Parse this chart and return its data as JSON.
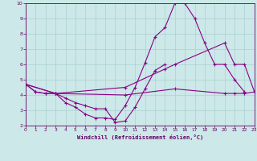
{
  "xlabel": "Windchill (Refroidissement éolien,°C)",
  "xlim": [
    0,
    23
  ],
  "ylim": [
    2,
    10
  ],
  "xticks": [
    0,
    1,
    2,
    3,
    4,
    5,
    6,
    7,
    8,
    9,
    10,
    11,
    12,
    13,
    14,
    15,
    16,
    17,
    18,
    19,
    20,
    21,
    22,
    23
  ],
  "yticks": [
    2,
    3,
    4,
    5,
    6,
    7,
    8,
    9,
    10
  ],
  "background_color": "#cce8e8",
  "grid_color": "#aad0d0",
  "line_color": "#880088",
  "curve1_x": [
    0,
    1,
    2,
    3,
    4,
    5,
    6,
    7,
    8,
    9,
    10,
    11,
    12,
    13,
    14,
    15,
    16,
    17,
    18,
    19,
    20,
    21,
    22
  ],
  "curve1_y": [
    4.7,
    4.2,
    4.1,
    4.1,
    3.5,
    3.2,
    2.75,
    2.5,
    2.5,
    2.4,
    3.3,
    4.5,
    6.1,
    7.8,
    8.4,
    10.0,
    10.0,
    9.0,
    7.4,
    6.0,
    6.0,
    5.0,
    4.2
  ],
  "curve2_x": [
    0,
    1,
    2,
    3,
    4,
    5,
    6,
    7,
    8,
    9,
    10,
    11,
    12,
    13,
    14
  ],
  "curve2_y": [
    4.7,
    4.2,
    4.1,
    4.1,
    3.8,
    3.5,
    3.3,
    3.1,
    3.1,
    2.2,
    2.3,
    3.2,
    4.4,
    5.6,
    6.0
  ],
  "curve3_x": [
    0,
    3,
    10,
    14,
    15,
    20,
    21,
    22,
    23
  ],
  "curve3_y": [
    4.7,
    4.1,
    4.5,
    5.7,
    6.0,
    7.4,
    6.0,
    6.0,
    4.2
  ],
  "curve4_x": [
    0,
    3,
    10,
    15,
    20,
    21,
    22,
    23
  ],
  "curve4_y": [
    4.7,
    4.1,
    4.0,
    4.4,
    4.1,
    4.1,
    4.1,
    4.2
  ]
}
